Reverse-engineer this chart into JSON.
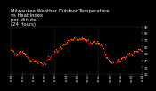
{
  "title": "Milwaukee Weather Outdoor Temperature",
  "subtitle1": "vs Heat Index",
  "subtitle2": "per Minute",
  "subtitle3": "(24 Hours)",
  "dot1_color": "#ff0000",
  "dot2_color": "#ff9900",
  "bg_color": "#000000",
  "text_color": "#ffffff",
  "fig_bg": "#000000",
  "grid_color": "#555555",
  "ylim": [
    20,
    90
  ],
  "xlim": [
    0,
    1440
  ],
  "yticks": [
    20,
    30,
    40,
    50,
    60,
    70,
    80,
    90
  ],
  "title_fontsize": 3.8,
  "tick_fontsize": 2.5,
  "dot_size": 0.4,
  "dot_step": 8
}
